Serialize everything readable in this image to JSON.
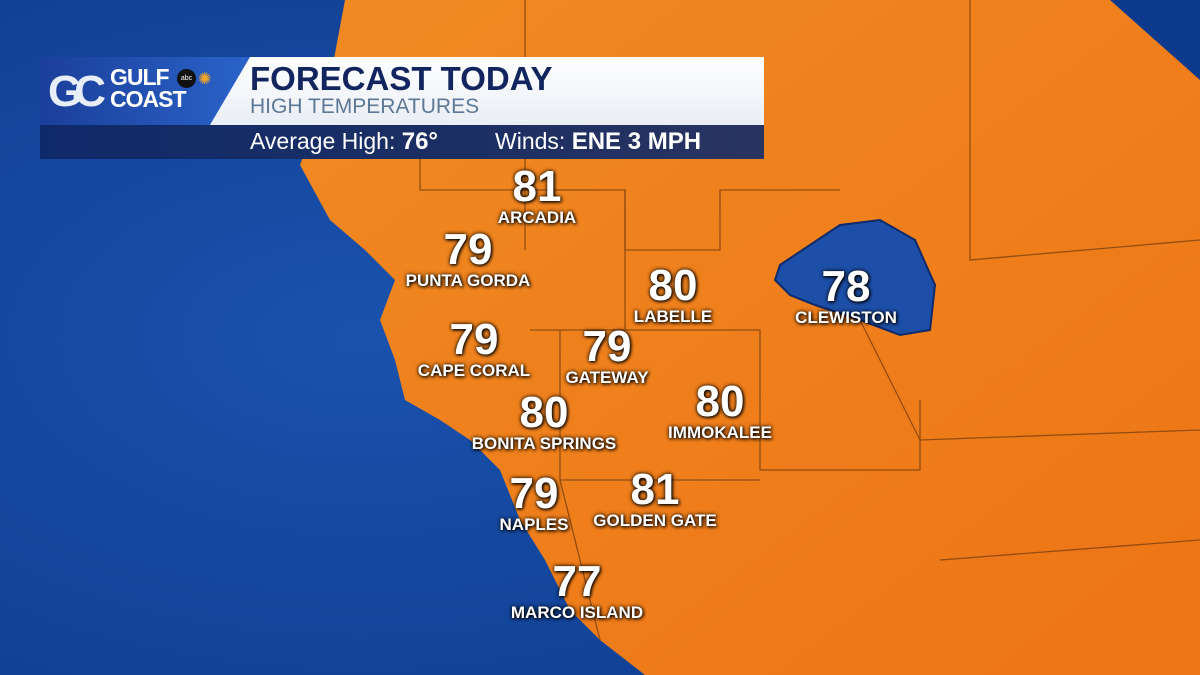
{
  "header": {
    "brand_line1": "GULF",
    "brand_line2": "COAST",
    "brand_monogram": "GC",
    "network_badge": "abc",
    "title": "FORECAST TODAY",
    "subtitle": "HIGH TEMPERATURES",
    "average_high_label": "Average High:",
    "average_high_value": "76°",
    "winds_label": "Winds:",
    "winds_value": "ENE 3 MPH"
  },
  "colors": {
    "water": "#1a4fa8",
    "land": "#f07a1a",
    "lake": "#1d4fa8",
    "banner_navy": "#13255e"
  },
  "cities": [
    {
      "name": "ARCADIA",
      "temp": "81"
    },
    {
      "name": "PUNTA GORDA",
      "temp": "79"
    },
    {
      "name": "LABELLE",
      "temp": "80"
    },
    {
      "name": "CLEWISTON",
      "temp": "78"
    },
    {
      "name": "CAPE CORAL",
      "temp": "79"
    },
    {
      "name": "GATEWAY",
      "temp": "79"
    },
    {
      "name": "BONITA SPRINGS",
      "temp": "80"
    },
    {
      "name": "IMMOKALEE",
      "temp": "80"
    },
    {
      "name": "NAPLES",
      "temp": "79"
    },
    {
      "name": "GOLDEN GATE",
      "temp": "81"
    },
    {
      "name": "MARCO ISLAND",
      "temp": "77"
    }
  ]
}
